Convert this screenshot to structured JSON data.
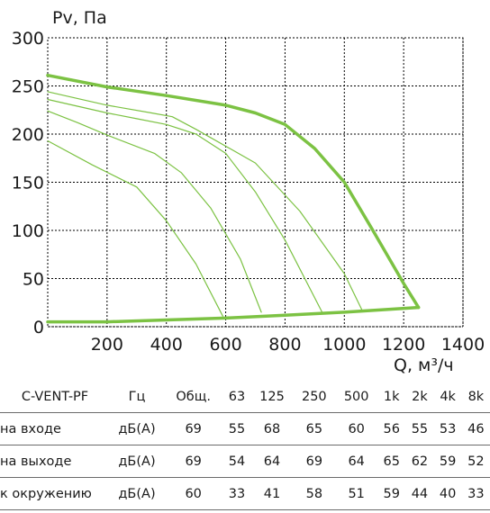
{
  "chart_data": {
    "type": "line",
    "title": "",
    "xlabel": "Q, м³/ч",
    "ylabel": "Pv, Па",
    "xlim": [
      0,
      1400
    ],
    "ylim": [
      0,
      300
    ],
    "x_ticks": [
      200,
      400,
      600,
      800,
      1000,
      1200,
      1400
    ],
    "y_ticks": [
      0,
      50,
      100,
      150,
      200,
      250,
      300
    ],
    "x_tick_labels": [
      "200",
      "400",
      "600",
      "800",
      "1000",
      "1200",
      "1400"
    ],
    "y_tick_labels": [
      "0",
      "50",
      "100",
      "150",
      "200",
      "250",
      "300"
    ],
    "grid": true,
    "colors": {
      "main": "#7cc243",
      "thin": "#7cc243",
      "grid": "#000000"
    },
    "series": [
      {
        "role": "max-curve",
        "points": [
          [
            0,
            261
          ],
          [
            200,
            249
          ],
          [
            400,
            240
          ],
          [
            600,
            230
          ],
          [
            700,
            222
          ],
          [
            800,
            210
          ],
          [
            900,
            185
          ],
          [
            1000,
            150
          ],
          [
            1100,
            98
          ],
          [
            1200,
            45
          ],
          [
            1250,
            20
          ]
        ]
      },
      {
        "role": "min-curve",
        "points": [
          [
            0,
            5
          ],
          [
            200,
            5
          ],
          [
            400,
            7
          ],
          [
            600,
            9
          ],
          [
            800,
            12
          ],
          [
            1000,
            15
          ],
          [
            1250,
            20
          ]
        ]
      },
      {
        "role": "speed-curve",
        "points": [
          [
            0,
            244
          ],
          [
            200,
            230
          ],
          [
            350,
            222
          ],
          [
            420,
            218
          ],
          [
            500,
            205
          ],
          [
            700,
            170
          ],
          [
            850,
            120
          ],
          [
            1000,
            55
          ],
          [
            1060,
            17
          ]
        ]
      },
      {
        "role": "speed-curve",
        "points": [
          [
            0,
            236
          ],
          [
            200,
            222
          ],
          [
            300,
            216
          ],
          [
            400,
            210
          ],
          [
            500,
            200
          ],
          [
            600,
            180
          ],
          [
            700,
            140
          ],
          [
            800,
            90
          ],
          [
            925,
            15
          ]
        ]
      },
      {
        "role": "speed-curve",
        "points": [
          [
            0,
            224
          ],
          [
            100,
            212
          ],
          [
            200,
            199
          ],
          [
            360,
            180
          ],
          [
            450,
            160
          ],
          [
            550,
            123
          ],
          [
            650,
            70
          ],
          [
            720,
            15
          ]
        ]
      },
      {
        "role": "speed-curve",
        "points": [
          [
            0,
            193
          ],
          [
            150,
            168
          ],
          [
            300,
            145
          ],
          [
            400,
            110
          ],
          [
            500,
            65
          ],
          [
            590,
            11
          ]
        ]
      }
    ]
  },
  "table": {
    "headers": [
      "C-VENT-PF",
      "Гц",
      "Общ.",
      "63",
      "125",
      "250",
      "500",
      "1k",
      "2k",
      "4k",
      "8k"
    ],
    "rows": [
      [
        "на входе",
        "дБ(А)",
        "69",
        "55",
        "68",
        "65",
        "60",
        "56",
        "55",
        "53",
        "46"
      ],
      [
        "на выходе",
        "дБ(А)",
        "69",
        "54",
        "64",
        "69",
        "64",
        "65",
        "62",
        "59",
        "52"
      ],
      [
        "к окружению",
        "дБ(А)",
        "60",
        "33",
        "41",
        "58",
        "51",
        "59",
        "44",
        "40",
        "33"
      ]
    ]
  }
}
